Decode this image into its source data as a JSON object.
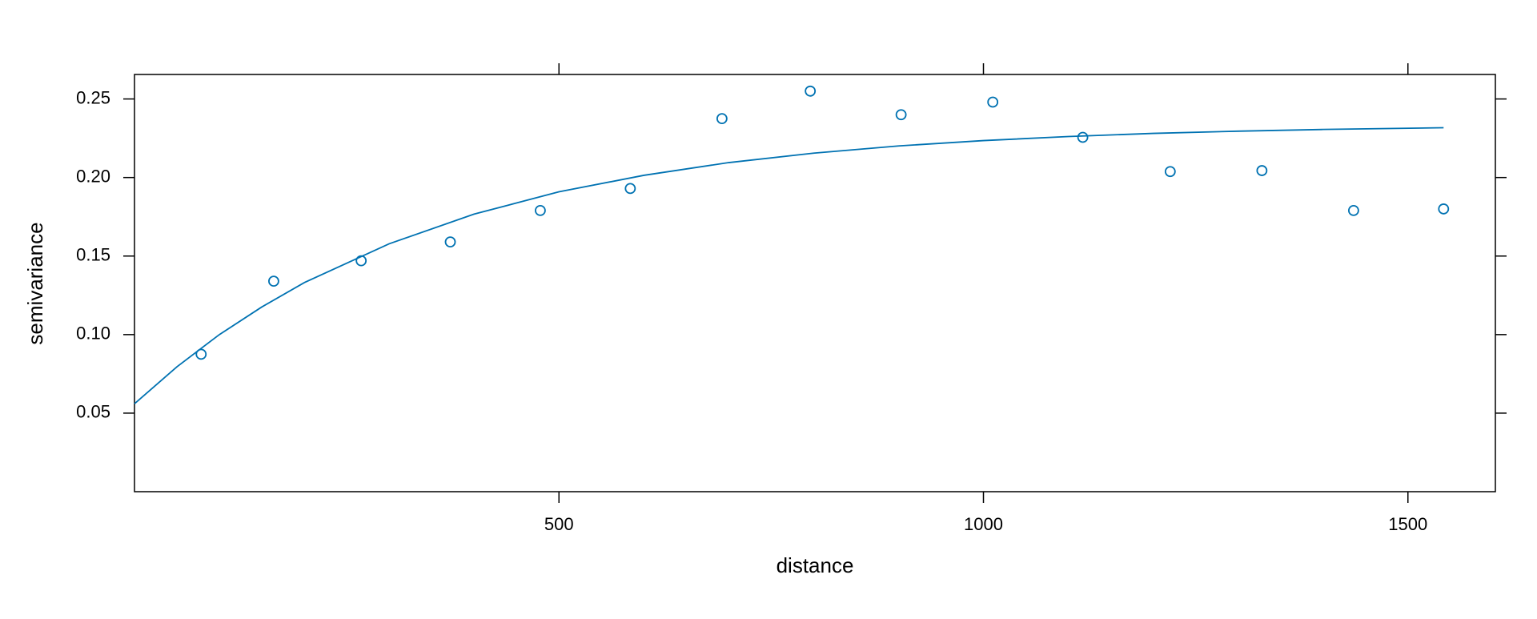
{
  "chart_data": {
    "type": "scatter",
    "xlabel": "distance",
    "ylabel": "semivariance",
    "xlim": [
      0,
      1603
    ],
    "ylim": [
      0,
      0.2656
    ],
    "xticks": [
      500,
      1000,
      1500
    ],
    "yticks": [
      0.05,
      0.1,
      0.15,
      0.2,
      0.25
    ],
    "ytick_labels": [
      "0.05",
      "0.10",
      "0.15",
      "0.20",
      "0.25"
    ],
    "series": [
      {
        "type": "scatter",
        "color": "#0072b2",
        "x": [
          78.5,
          164,
          267,
          372,
          478,
          584,
          692,
          796,
          903,
          1011,
          1117,
          1220,
          1328,
          1436,
          1542
        ],
        "values": [
          0.0875,
          0.134,
          0.147,
          0.159,
          0.179,
          0.193,
          0.2375,
          0.255,
          0.24,
          0.248,
          0.2256,
          0.2038,
          0.2044,
          0.179,
          0.18
        ]
      },
      {
        "type": "line",
        "color": "#0072b2",
        "x": [
          0,
          50,
          100,
          150,
          200,
          300,
          400,
          500,
          600,
          700,
          800,
          900,
          1000,
          1100,
          1200,
          1300,
          1400,
          1542
        ],
        "values": [
          0.056,
          0.0795,
          0.1,
          0.1176,
          0.1331,
          0.1578,
          0.1767,
          0.1909,
          0.2014,
          0.2095,
          0.2155,
          0.2201,
          0.2235,
          0.2261,
          0.2281,
          0.2295,
          0.2306,
          0.2317
        ]
      }
    ]
  }
}
